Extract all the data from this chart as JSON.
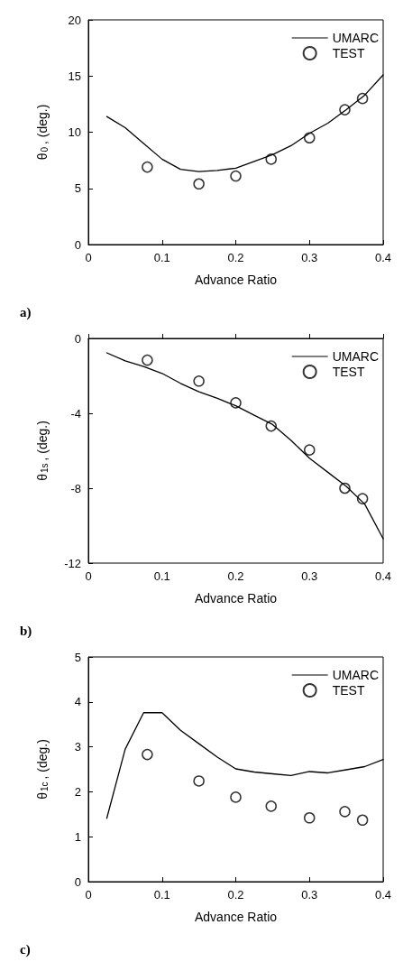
{
  "chart_data": [
    {
      "type": "line",
      "xlabel": "Advance Ratio",
      "ylabel": "θ$_{0}$, (deg.)",
      "annotations": [
        "a)"
      ],
      "xlim": [
        0,
        0.4
      ],
      "xticks": [
        0,
        0.1,
        0.2,
        0.3,
        0.4
      ],
      "ylim": [
        0,
        20
      ],
      "yticks": [
        0,
        5,
        10,
        15,
        20
      ],
      "legend": "top right",
      "grid": false,
      "series": [
        {
          "name": "UMARC",
          "marker": "none",
          "line_style": "solid",
          "color": "#000000",
          "x": [
            0.025,
            0.05,
            0.075,
            0.1,
            0.125,
            0.15,
            0.175,
            0.2,
            0.225,
            0.25,
            0.275,
            0.3,
            0.325,
            0.35,
            0.375,
            0.4
          ],
          "values": [
            11.4,
            10.4,
            9.0,
            7.6,
            6.7,
            6.5,
            6.6,
            6.8,
            7.4,
            8.0,
            8.8,
            9.9,
            10.8,
            12.0,
            13.3,
            15.1
          ]
        },
        {
          "name": "TEST",
          "type": "scatter",
          "marker": "circle",
          "color": "#000000",
          "x": [
            0.08,
            0.15,
            0.2,
            0.248,
            0.3,
            0.348,
            0.372
          ],
          "values": [
            6.9,
            5.4,
            6.1,
            7.6,
            9.5,
            12.0,
            13.0
          ]
        }
      ]
    },
    {
      "type": "line",
      "xlabel": "Advance Ratio",
      "ylabel": "θ$_{1s}$, (deg.)",
      "annotations": [
        "b)"
      ],
      "xlim": [
        0,
        0.4
      ],
      "xticks": [
        0,
        0.1,
        0.2,
        0.3,
        0.4
      ],
      "ylim": [
        -12,
        0
      ],
      "yticks": [
        -12,
        -8,
        -4,
        0
      ],
      "legend": "top right",
      "grid": false,
      "series": [
        {
          "name": "UMARC",
          "marker": "none",
          "line_style": "solid",
          "color": "#000000",
          "x": [
            0.025,
            0.05,
            0.075,
            0.1,
            0.125,
            0.15,
            0.175,
            0.2,
            0.225,
            0.25,
            0.275,
            0.3,
            0.325,
            0.35,
            0.375,
            0.4
          ],
          "values": [
            -0.77,
            -1.2,
            -1.5,
            -1.87,
            -2.4,
            -2.85,
            -3.2,
            -3.6,
            -4.1,
            -4.6,
            -5.45,
            -6.4,
            -7.15,
            -7.9,
            -8.85,
            -10.7
          ]
        },
        {
          "name": "TEST",
          "type": "scatter",
          "marker": "circle",
          "color": "#000000",
          "x": [
            0.08,
            0.15,
            0.2,
            0.248,
            0.3,
            0.348,
            0.372
          ],
          "values": [
            -1.16,
            -2.28,
            -3.44,
            -4.68,
            -5.96,
            -8.0,
            -8.56
          ]
        }
      ]
    },
    {
      "type": "line",
      "xlabel": "Advance Ratio",
      "ylabel": "θ$_{1c}$, (deg.)",
      "annotations": [
        "c)"
      ],
      "xlim": [
        0,
        0.4
      ],
      "xticks": [
        0,
        0.1,
        0.2,
        0.3,
        0.4
      ],
      "ylim": [
        0,
        5
      ],
      "yticks": [
        0,
        1,
        2,
        3,
        4,
        5
      ],
      "legend": "top right",
      "grid": false,
      "series": [
        {
          "name": "UMARC",
          "marker": "none",
          "line_style": "solid",
          "color": "#000000",
          "x": [
            0.025,
            0.05,
            0.075,
            0.1,
            0.125,
            0.15,
            0.175,
            0.2,
            0.225,
            0.25,
            0.275,
            0.3,
            0.325,
            0.35,
            0.375,
            0.4
          ],
          "values": [
            1.41,
            2.95,
            3.76,
            3.76,
            3.37,
            3.07,
            2.77,
            2.51,
            2.44,
            2.4,
            2.36,
            2.45,
            2.42,
            2.49,
            2.56,
            2.72
          ]
        },
        {
          "name": "TEST",
          "type": "scatter",
          "marker": "circle",
          "color": "#000000",
          "x": [
            0.08,
            0.15,
            0.2,
            0.248,
            0.3,
            0.348,
            0.372
          ],
          "values": [
            2.83,
            2.24,
            1.88,
            1.68,
            1.42,
            1.56,
            1.37
          ]
        }
      ]
    }
  ]
}
